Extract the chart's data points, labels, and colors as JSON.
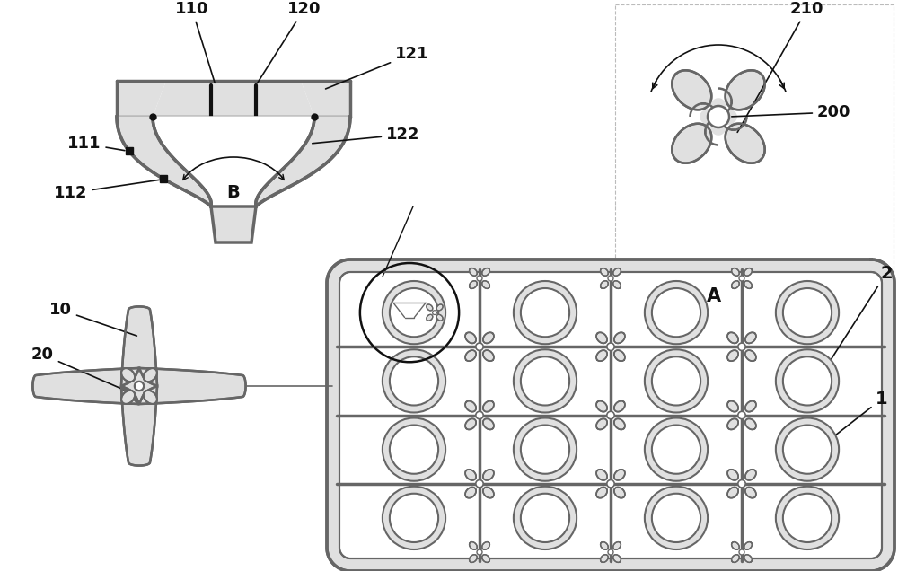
{
  "bg_color": "#ffffff",
  "lc": "#666666",
  "dc": "#111111",
  "fig_w": 10.0,
  "fig_h": 6.36,
  "dpi": 100,
  "gray_fill": "#c8c8c8",
  "light_gray": "#e0e0e0",
  "white": "#ffffff"
}
